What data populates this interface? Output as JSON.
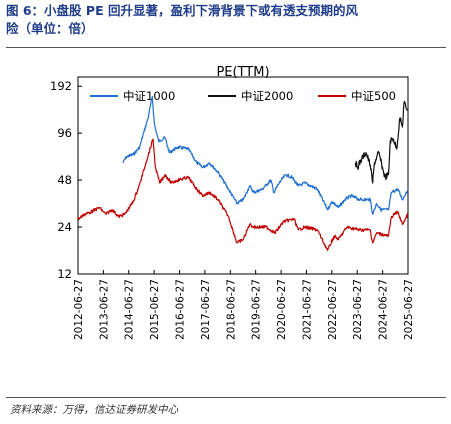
{
  "figure": {
    "title_line1": "图 6：小盘股 PE 回升显著，盈利下滑背景下或有透支预期的风",
    "title_line2": "险（单位：倍）",
    "source": "资料来源：万得，信达证券研发中心"
  },
  "chart_data": {
    "type": "line",
    "title": "PE(TTM)",
    "xlabel": "",
    "ylabel": "",
    "y_scale": "log2",
    "ylim": [
      12,
      220
    ],
    "yticks": [
      12,
      24,
      48,
      96,
      192
    ],
    "xlim": [
      "2012-06-27",
      "2025-06-27"
    ],
    "xticks": [
      "2012-06-27",
      "2013-06-27",
      "2014-06-27",
      "2015-06-27",
      "2016-06-27",
      "2017-06-27",
      "2018-06-27",
      "2019-06-27",
      "2020-06-27",
      "2021-06-27",
      "2022-06-27",
      "2023-06-27",
      "2024-06-27",
      "2025-06-27"
    ],
    "legend_position": "top",
    "grid": false,
    "series": [
      {
        "name": "中证1000",
        "color": "#1f6fcf",
        "x": [
          "2014-04-01",
          "2014-06-01",
          "2014-09-01",
          "2014-12-01",
          "2015-02-01",
          "2015-04-01",
          "2015-06-01",
          "2015-07-01",
          "2015-09-01",
          "2015-12-01",
          "2016-02-01",
          "2016-06-01",
          "2016-11-01",
          "2017-03-01",
          "2017-06-01",
          "2017-09-01",
          "2018-01-01",
          "2018-06-01",
          "2018-10-01",
          "2019-01-01",
          "2019-04-01",
          "2019-06-01",
          "2019-10-01",
          "2020-02-01",
          "2020-03-15",
          "2020-06-01",
          "2020-09-01",
          "2020-12-01",
          "2021-03-01",
          "2021-06-01",
          "2021-09-01",
          "2021-12-01",
          "2022-04-27",
          "2022-07-01",
          "2022-10-01",
          "2023-01-01",
          "2023-04-01",
          "2023-08-01",
          "2024-01-01",
          "2024-02-05",
          "2024-04-01",
          "2024-06-01",
          "2024-09-20",
          "2024-11-01",
          "2025-02-01",
          "2025-04-08",
          "2025-06-27"
        ],
        "y": [
          62,
          68,
          70,
          78,
          98,
          120,
          165,
          110,
          85,
          90,
          72,
          78,
          76,
          62,
          58,
          62,
          54,
          42,
          34,
          36,
          44,
          40,
          42,
          48,
          40,
          46,
          52,
          50,
          44,
          46,
          44,
          42,
          31,
          35,
          32,
          36,
          38,
          36,
          36,
          29,
          34,
          31,
          31,
          40,
          42,
          36,
          42
        ]
      },
      {
        "name": "中证2000",
        "color": "#111111",
        "x": [
          "2023-06-01",
          "2023-07-01",
          "2023-09-01",
          "2023-11-01",
          "2024-01-01",
          "2024-02-05",
          "2024-03-01",
          "2024-05-01",
          "2024-07-01",
          "2024-08-01",
          "2024-09-20",
          "2024-10-15",
          "2024-12-01",
          "2025-01-15",
          "2025-03-01",
          "2025-04-08",
          "2025-05-01",
          "2025-06-27"
        ],
        "y": [
          62,
          58,
          66,
          72,
          60,
          46,
          62,
          72,
          56,
          50,
          52,
          86,
          88,
          76,
          120,
          105,
          150,
          135
        ]
      },
      {
        "name": "中证500",
        "color": "#c00000",
        "x": [
          "2012-06-27",
          "2012-10-01",
          "2013-01-01",
          "2013-05-01",
          "2013-08-01",
          "2013-11-01",
          "2014-02-01",
          "2014-05-01",
          "2014-09-01",
          "2014-12-01",
          "2015-03-01",
          "2015-06-12",
          "2015-07-15",
          "2015-09-15",
          "2015-12-01",
          "2016-03-01",
          "2016-06-01",
          "2016-11-01",
          "2017-03-01",
          "2017-06-01",
          "2017-09-01",
          "2018-01-01",
          "2018-06-01",
          "2018-10-01",
          "2019-01-01",
          "2019-04-01",
          "2019-06-01",
          "2019-12-01",
          "2020-04-01",
          "2020-08-01",
          "2021-01-01",
          "2021-03-01",
          "2021-06-01",
          "2021-12-01",
          "2022-04-27",
          "2022-08-01",
          "2022-10-01",
          "2023-02-01",
          "2023-08-01",
          "2024-01-01",
          "2024-02-05",
          "2024-04-01",
          "2024-09-20",
          "2024-11-01",
          "2025-02-01",
          "2025-04-08",
          "2025-06-27"
        ],
        "y": [
          27,
          29,
          30,
          32,
          29,
          31,
          28,
          29,
          35,
          45,
          62,
          88,
          58,
          46,
          52,
          46,
          48,
          50,
          42,
          38,
          40,
          36,
          28,
          19,
          20,
          25,
          24,
          24,
          22,
          26,
          27,
          23,
          24,
          23,
          17,
          21,
          20,
          24,
          23,
          23,
          19,
          22,
          21,
          28,
          30,
          25,
          29
        ]
      }
    ]
  }
}
